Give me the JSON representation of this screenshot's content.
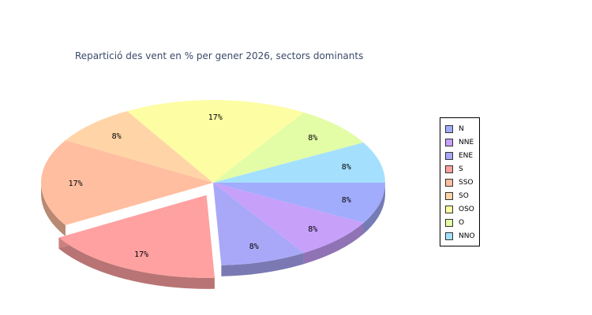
{
  "chart_data": {
    "type": "pie",
    "title": "Repartició des vent en % per gener 2026, sectors dominants",
    "categories": [
      "N",
      "NNE",
      "ENE",
      "S",
      "SSO",
      "SO",
      "OSO",
      "O",
      "NNO"
    ],
    "values": [
      8,
      8,
      8,
      17,
      17,
      8,
      17,
      8,
      8
    ],
    "labels": [
      "8%",
      "8%",
      "8%",
      "17%",
      "17%",
      "8%",
      "17%",
      "8%",
      "8%"
    ],
    "exploded": "S",
    "legend_position": "right",
    "colors": [
      "#a2acfc",
      "#c7a0fa",
      "#a9a8f8",
      "#ffa1a1",
      "#ffbea0",
      "#ffd4a6",
      "#fdfda4",
      "#e3fca6",
      "#a4e0fe"
    ]
  }
}
